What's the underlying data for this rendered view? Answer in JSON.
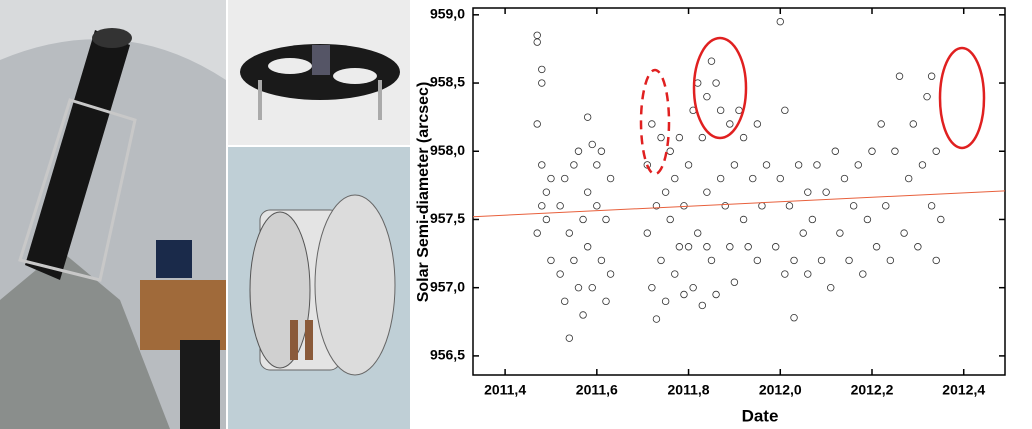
{
  "chart_data": {
    "type": "scatter",
    "xlabel": "Date",
    "ylabel": "Solar Semi-diameter (arcsec)",
    "xlim": [
      2011.33,
      2012.49
    ],
    "ylim": [
      956.36,
      959.05
    ],
    "xticks": [
      {
        "value": 2011.4,
        "label": "2011,4"
      },
      {
        "value": 2011.6,
        "label": "2011,6"
      },
      {
        "value": 2011.8,
        "label": "2011,8"
      },
      {
        "value": 2012.0,
        "label": "2012,0"
      },
      {
        "value": 2012.2,
        "label": "2012,2"
      },
      {
        "value": 2012.4,
        "label": "2012,4"
      }
    ],
    "yticks": [
      {
        "value": 956.5,
        "label": "956,5"
      },
      {
        "value": 957.0,
        "label": "957,0"
      },
      {
        "value": 957.5,
        "label": "957,5"
      },
      {
        "value": 958.0,
        "label": "958,0"
      },
      {
        "value": 958.5,
        "label": "958,5"
      },
      {
        "value": 959.0,
        "label": "959,0"
      }
    ],
    "marker_color": "#333333",
    "x": [
      2011.47,
      2011.47,
      2011.48,
      2011.48,
      2011.47,
      2011.48,
      2011.49,
      2011.49,
      2011.5,
      2011.5,
      2011.48,
      2011.47,
      2011.52,
      2011.52,
      2011.53,
      2011.53,
      2011.54,
      2011.54,
      2011.55,
      2011.55,
      2011.56,
      2011.56,
      2011.57,
      2011.57,
      2011.58,
      2011.58,
      2011.59,
      2011.59,
      2011.6,
      2011.6,
      2011.61,
      2011.61,
      2011.62,
      2011.62,
      2011.63,
      2011.63,
      2011.58,
      2011.71,
      2011.71,
      2011.72,
      2011.72,
      2011.73,
      2011.73,
      2011.74,
      2011.74,
      2011.75,
      2011.75,
      2011.76,
      2011.76,
      2011.77,
      2011.77,
      2011.78,
      2011.78,
      2011.79,
      2011.79,
      2011.8,
      2011.8,
      2011.81,
      2011.81,
      2011.82,
      2011.82,
      2011.83,
      2011.83,
      2011.84,
      2011.84,
      2011.85,
      2011.85,
      2011.86,
      2011.86,
      2011.87,
      2011.87,
      2011.84,
      2011.88,
      2011.89,
      2011.89,
      2011.9,
      2011.9,
      2011.91,
      2011.92,
      2011.92,
      2011.93,
      2011.94,
      2011.95,
      2011.95,
      2011.96,
      2011.97,
      2011.99,
      2012.0,
      2012.0,
      2012.01,
      2012.01,
      2012.02,
      2012.03,
      2012.03,
      2012.04,
      2012.05,
      2012.06,
      2012.06,
      2012.07,
      2012.08,
      2012.09,
      2012.1,
      2012.11,
      2012.12,
      2012.13,
      2012.14,
      2012.15,
      2012.16,
      2012.17,
      2012.18,
      2012.19,
      2012.2,
      2012.21,
      2012.22,
      2012.23,
      2012.24,
      2012.25,
      2012.26,
      2012.27,
      2012.28,
      2012.29,
      2012.3,
      2012.31,
      2012.32,
      2012.33,
      2012.33,
      2012.34,
      2012.34,
      2012.35
    ],
    "values": [
      958.85,
      958.8,
      958.6,
      958.5,
      958.2,
      957.9,
      957.7,
      957.5,
      957.2,
      957.8,
      957.6,
      957.4,
      957.6,
      957.1,
      957.8,
      956.9,
      957.4,
      956.63,
      957.9,
      957.2,
      958.0,
      957.0,
      957.5,
      956.8,
      957.7,
      957.3,
      958.05,
      957.0,
      957.6,
      957.9,
      957.2,
      958.0,
      956.9,
      957.5,
      957.8,
      957.1,
      958.25,
      957.4,
      957.9,
      957.0,
      958.2,
      957.6,
      956.77,
      958.1,
      957.2,
      957.7,
      956.9,
      957.5,
      958.0,
      957.1,
      957.8,
      957.3,
      958.1,
      957.6,
      956.95,
      957.9,
      957.3,
      958.3,
      957.0,
      958.5,
      957.4,
      956.87,
      958.1,
      957.7,
      958.4,
      958.66,
      957.2,
      958.5,
      956.95,
      957.8,
      958.3,
      957.3,
      957.6,
      958.2,
      957.3,
      957.9,
      957.04,
      958.3,
      957.5,
      958.1,
      957.3,
      957.8,
      957.2,
      958.2,
      957.6,
      957.9,
      957.3,
      958.95,
      957.8,
      958.3,
      957.1,
      957.6,
      957.2,
      956.78,
      957.9,
      957.4,
      957.7,
      957.1,
      957.5,
      957.9,
      957.2,
      957.7,
      957.0,
      958.0,
      957.4,
      957.8,
      957.2,
      957.6,
      957.9,
      957.1,
      957.5,
      958.0,
      957.3,
      958.2,
      957.6,
      957.2,
      958.0,
      958.55,
      957.4,
      957.8,
      958.2,
      957.3,
      957.9,
      958.4,
      958.55,
      957.6,
      957.2,
      958.0,
      957.5
    ],
    "trend": {
      "color": "#e8603c",
      "x": [
        2011.33,
        2012.49
      ],
      "values": [
        957.52,
        957.71
      ]
    },
    "annotation_color": "#e02020"
  }
}
